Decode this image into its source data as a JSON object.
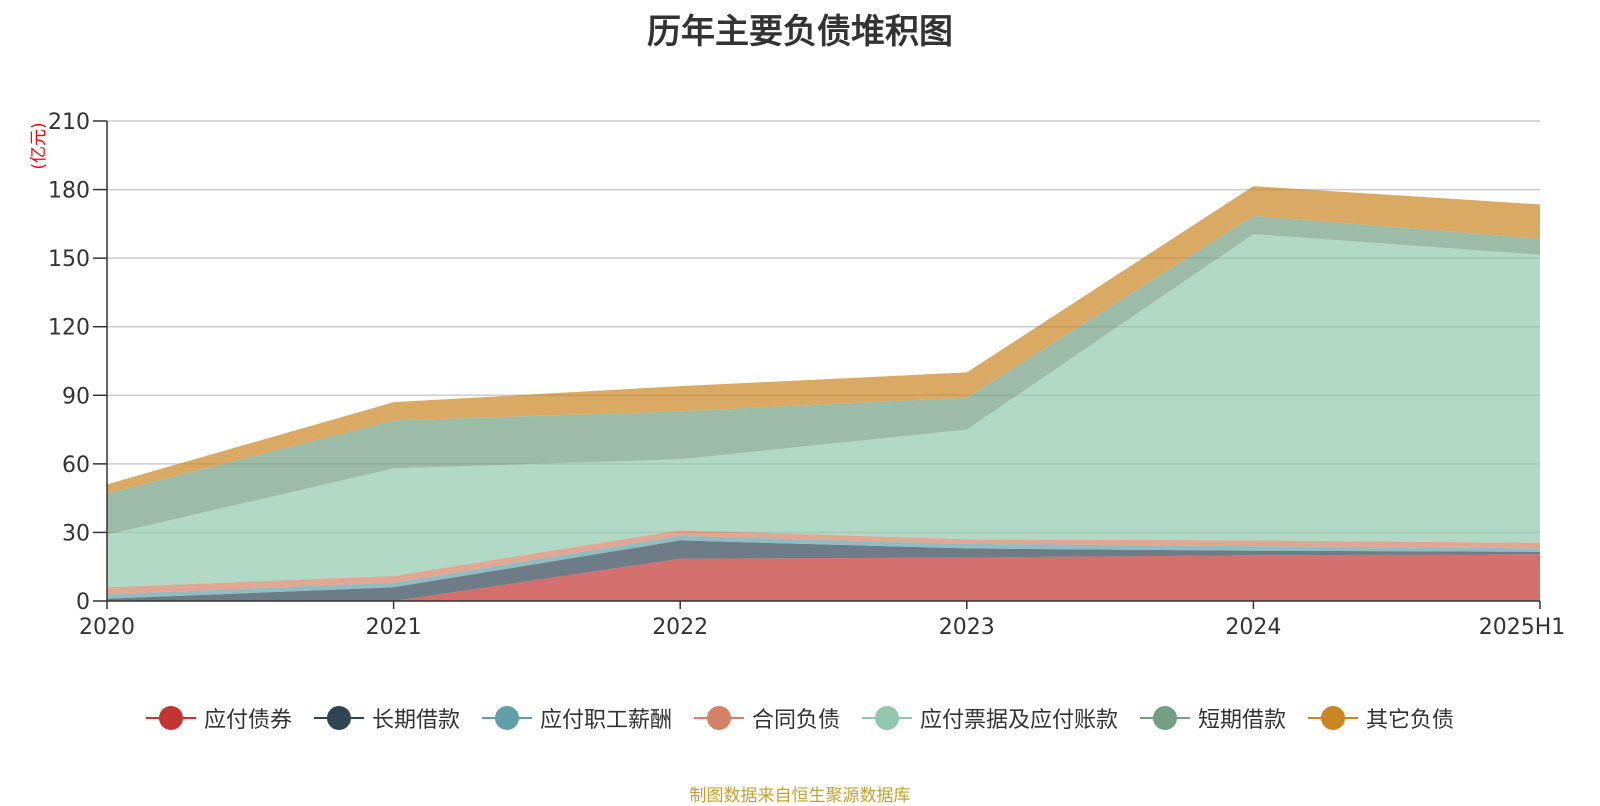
{
  "chart_data": {
    "type": "area",
    "stacked": true,
    "title": "历年主要负债堆积图",
    "ylabel": "(亿元)",
    "xlabel": "",
    "categories": [
      "2020",
      "2021",
      "2022",
      "2023",
      "2024",
      "2025H1"
    ],
    "ylim": [
      0,
      210
    ],
    "yticks": [
      0,
      30,
      60,
      90,
      120,
      150,
      180,
      210
    ],
    "grid": true,
    "legend_position": "bottom",
    "series": [
      {
        "name": "应付债券",
        "color": "#c23531",
        "values": [
          0,
          0,
          18.5,
          19,
          20,
          20.5
        ]
      },
      {
        "name": "长期借款",
        "color": "#2f4554",
        "values": [
          1,
          6,
          8,
          4,
          2,
          1
        ]
      },
      {
        "name": "应付职工薪酬",
        "color": "#61a0a8",
        "values": [
          2,
          2,
          2,
          2,
          2,
          1.5
        ]
      },
      {
        "name": "合同负债",
        "color": "#d48265",
        "values": [
          3,
          3,
          2.5,
          2,
          2.5,
          2.5
        ]
      },
      {
        "name": "应付票据及应付账款",
        "color": "#91c7ae",
        "values": [
          23,
          47,
          31,
          48,
          134,
          126
        ]
      },
      {
        "name": "短期借款",
        "color": "#749f83",
        "values": [
          18,
          21,
          21,
          14,
          8,
          7
        ]
      },
      {
        "name": "其它负债",
        "color": "#ca8622",
        "values": [
          4,
          8,
          11,
          11,
          13,
          15
        ]
      }
    ]
  },
  "source_note": "制图数据来自恒生聚源数据库"
}
